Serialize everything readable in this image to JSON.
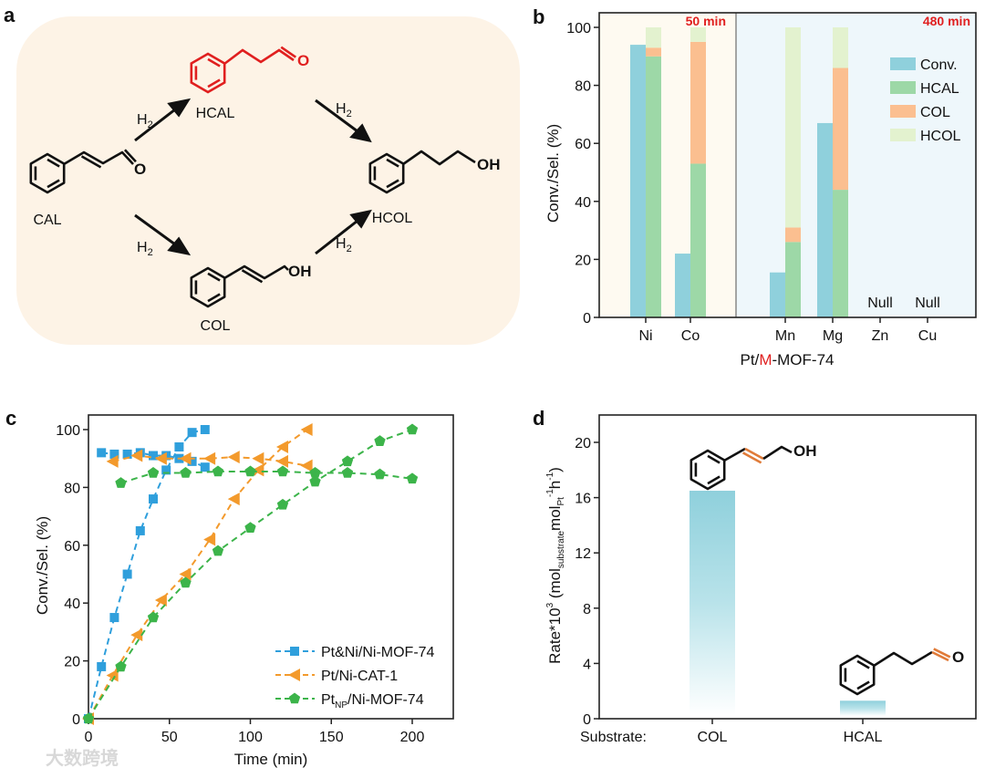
{
  "panel_a": {
    "label": "a",
    "molecules": {
      "cal": "CAL",
      "hcal": "HCAL",
      "col": "COL",
      "hcol": "HCOL"
    },
    "atoms": {
      "o": "O",
      "oh": "OH"
    },
    "reagent": "H",
    "reagent_sub": "2",
    "colors": {
      "background": "#fdf3e6",
      "highlight": "#e01f1f"
    }
  },
  "watermark": "大数跨境",
  "chart_data": [
    {
      "panel": "b",
      "type": "bar",
      "stacked_selectivity": true,
      "title_left": "50 min",
      "title_right": "480 min",
      "xlabel_prefix": "Pt/",
      "xlabel_highlight": "M",
      "xlabel_suffix": "-MOF-74",
      "ylabel": "Conv./Sel. (%)",
      "ylim": [
        0,
        105
      ],
      "yticks": [
        "0",
        "20",
        "40",
        "60",
        "80",
        "100"
      ],
      "categories": [
        "Ni",
        "Co",
        "Mn",
        "Mg",
        "Zn",
        "Cu"
      ],
      "legend": [
        "Conv.",
        "HCAL",
        "COL",
        "HCOL"
      ],
      "legend_position": "top-right",
      "colors": {
        "Conv.": "#8fd0dc",
        "HCAL": "#9dd8a7",
        "COL": "#fbbf90",
        "HCOL": "#e3f2cf",
        "region_left": "#fefaf1",
        "region_right": "#eef7fb"
      },
      "series": [
        {
          "name": "Conv.",
          "values": [
            94,
            22,
            15.5,
            67,
            null,
            null
          ]
        },
        {
          "name": "HCAL",
          "values": [
            90,
            53,
            26,
            44,
            null,
            null
          ]
        },
        {
          "name": "COL",
          "values": [
            3,
            42,
            5,
            42,
            null,
            null
          ]
        },
        {
          "name": "HCOL",
          "values": [
            7,
            5,
            69,
            14,
            null,
            null
          ]
        }
      ],
      "null_label": "Null"
    },
    {
      "panel": "c",
      "type": "line",
      "xlabel": "Time (min)",
      "ylabel": "Conv./Sel. (%)",
      "xlim": [
        0,
        225
      ],
      "ylim": [
        0,
        105
      ],
      "xticks": [
        "0",
        "50",
        "100",
        "150",
        "200"
      ],
      "yticks": [
        "0",
        "20",
        "40",
        "60",
        "80",
        "100"
      ],
      "legend_position": "bottom-right",
      "series": [
        {
          "name": "Pt&Ni/Ni-MOF-74",
          "name_main": "Pt&Ni/Ni-MOF-74",
          "color": "#2f9fdc",
          "marker": "square",
          "conversion": [
            [
              0,
              0
            ],
            [
              8,
              18
            ],
            [
              16,
              35
            ],
            [
              24,
              50
            ],
            [
              32,
              65
            ],
            [
              40,
              76
            ],
            [
              48,
              86
            ],
            [
              56,
              94
            ],
            [
              64,
              99
            ],
            [
              72,
              100
            ]
          ],
          "selectivity": [
            [
              8,
              92
            ],
            [
              16,
              91.5
            ],
            [
              24,
              91.5
            ],
            [
              32,
              92
            ],
            [
              40,
              91
            ],
            [
              48,
              91
            ],
            [
              56,
              90
            ],
            [
              64,
              89
            ],
            [
              72,
              87
            ]
          ]
        },
        {
          "name": "Pt/Ni-CAT-1",
          "name_main": "Pt/Ni-CAT-1",
          "color": "#f39a2c",
          "marker": "triangle-left",
          "conversion": [
            [
              0,
              0
            ],
            [
              15,
              15
            ],
            [
              30,
              29
            ],
            [
              45,
              41
            ],
            [
              60,
              50
            ],
            [
              75,
              62
            ],
            [
              90,
              76
            ],
            [
              105,
              86
            ],
            [
              120,
              94
            ],
            [
              135,
              100
            ]
          ],
          "selectivity": [
            [
              15,
              89
            ],
            [
              30,
              91
            ],
            [
              45,
              90
            ],
            [
              60,
              90
            ],
            [
              75,
              90
            ],
            [
              90,
              90.5
            ],
            [
              105,
              90
            ],
            [
              120,
              89
            ],
            [
              135,
              87.5
            ]
          ]
        },
        {
          "name": "PtNP/Ni-MOF-74",
          "name_main": "Pt",
          "name_sub": "NP",
          "name_rest": "/Ni-MOF-74",
          "color": "#3cb44a",
          "marker": "pentagon",
          "conversion": [
            [
              0,
              0
            ],
            [
              20,
              18
            ],
            [
              40,
              35
            ],
            [
              60,
              47
            ],
            [
              80,
              58
            ],
            [
              100,
              66
            ],
            [
              120,
              74
            ],
            [
              140,
              82
            ],
            [
              160,
              89
            ],
            [
              180,
              96
            ],
            [
              200,
              100
            ]
          ],
          "selectivity": [
            [
              20,
              81.5
            ],
            [
              40,
              85
            ],
            [
              60,
              85
            ],
            [
              80,
              85.5
            ],
            [
              100,
              85.5
            ],
            [
              120,
              85.5
            ],
            [
              140,
              85
            ],
            [
              160,
              85
            ],
            [
              180,
              84.5
            ],
            [
              200,
              83
            ]
          ]
        }
      ]
    },
    {
      "panel": "d",
      "type": "bar",
      "xlabel_prefix": "Substrate:",
      "categories": [
        "COL",
        "HCAL"
      ],
      "values": [
        16.5,
        1.3
      ],
      "ylim": [
        0,
        22
      ],
      "yticks": [
        "0",
        "4",
        "8",
        "12",
        "16",
        "20"
      ],
      "ylabel_parts": {
        "a": "Rate*10",
        "a_sup": "3",
        "b": " (mol",
        "b_sub": "substrate",
        "c": "mol",
        "c_sub": "Pt",
        "c_sup": "-1",
        "d": "h",
        "d_sup": "-1",
        "e": ")"
      },
      "color": "#8fd0dc",
      "bond_highlight": "#e07b39"
    }
  ],
  "panel_labels": {
    "b": "b",
    "c": "c",
    "d": "d"
  }
}
